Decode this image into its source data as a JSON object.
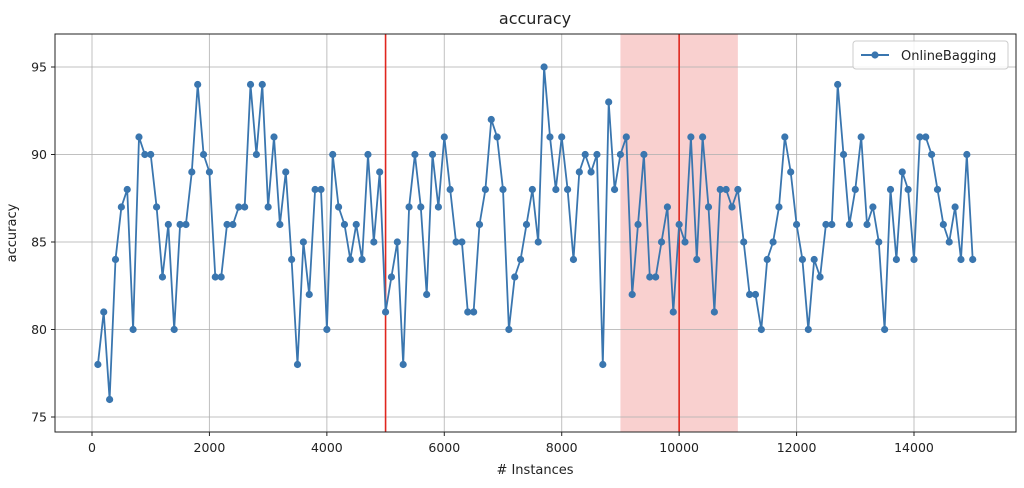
{
  "chart_data": {
    "type": "line",
    "title": "accuracy",
    "xlabel": "# Instances",
    "ylabel": "accuracy",
    "xlim": [
      -700,
      15700
    ],
    "ylim": [
      74.2,
      96.8
    ],
    "xticks": [
      0,
      2000,
      4000,
      6000,
      8000,
      10000,
      12000,
      14000
    ],
    "xtick_labels": [
      "0",
      "2000",
      "4000",
      "6000",
      "8000",
      "10000",
      "12000",
      "14000"
    ],
    "yticks": [
      75,
      80,
      85,
      90,
      95
    ],
    "ytick_labels": [
      "75",
      "80",
      "85",
      "90",
      "95"
    ],
    "grid": true,
    "legend": {
      "position": "upper right",
      "entries": [
        "OnlineBagging"
      ]
    },
    "series": [
      {
        "name": "OnlineBagging",
        "color": "#3a76af",
        "marker": "circle",
        "x": [
          100,
          200,
          300,
          400,
          500,
          600,
          700,
          800,
          900,
          1000,
          1100,
          1200,
          1300,
          1400,
          1500,
          1600,
          1700,
          1800,
          1900,
          2000,
          2100,
          2200,
          2300,
          2400,
          2500,
          2600,
          2700,
          2800,
          2900,
          3000,
          3100,
          3200,
          3300,
          3400,
          3500,
          3600,
          3700,
          3800,
          3900,
          4000,
          4100,
          4200,
          4300,
          4400,
          4500,
          4600,
          4700,
          4800,
          4900,
          5000,
          5100,
          5200,
          5300,
          5400,
          5500,
          5600,
          5700,
          5800,
          5900,
          6000,
          6100,
          6200,
          6300,
          6400,
          6500,
          6600,
          6700,
          6800,
          6900,
          7000,
          7100,
          7200,
          7300,
          7400,
          7500,
          7600,
          7700,
          7800,
          7900,
          8000,
          8100,
          8200,
          8300,
          8400,
          8500,
          8600,
          8700,
          8800,
          8900,
          9000,
          9100,
          9200,
          9300,
          9400,
          9500,
          9600,
          9700,
          9800,
          9900,
          10000,
          10100,
          10200,
          10300,
          10400,
          10500,
          10600,
          10700,
          10800,
          10900,
          11000,
          11100,
          11200,
          11300,
          11400,
          11500,
          11600,
          11700,
          11800,
          11900,
          12000,
          12100,
          12200,
          12300,
          12400,
          12500,
          12600,
          12700,
          12800,
          12900,
          13000,
          13100,
          13200,
          13300,
          13400,
          13500,
          13600,
          13700,
          13800,
          13900,
          14000,
          14100,
          14200,
          14300,
          14400,
          14500,
          14600,
          14700,
          14800,
          14900,
          15000
        ],
        "values": [
          78,
          81,
          76,
          84,
          87,
          88,
          80,
          91,
          90,
          90,
          87,
          83,
          86,
          80,
          86,
          86,
          89,
          94,
          90,
          89,
          83,
          83,
          86,
          86,
          87,
          87,
          94,
          90,
          94,
          87,
          91,
          86,
          89,
          84,
          78,
          85,
          82,
          88,
          88,
          80,
          90,
          87,
          86,
          84,
          86,
          84,
          90,
          85,
          89,
          81,
          83,
          85,
          78,
          87,
          90,
          87,
          82,
          90,
          87,
          91,
          88,
          85,
          85,
          81,
          81,
          86,
          88,
          92,
          91,
          88,
          80,
          83,
          84,
          86,
          88,
          85,
          95,
          91,
          88,
          91,
          88,
          84,
          89,
          90,
          89,
          90,
          78,
          93,
          88,
          90,
          91,
          82,
          86,
          90,
          83,
          83,
          85,
          87,
          81,
          86,
          85,
          91,
          84,
          91,
          87,
          81,
          88,
          88,
          87,
          88,
          85,
          82,
          82,
          80,
          84,
          85,
          87,
          91,
          89,
          86,
          84,
          80,
          84,
          83,
          86,
          86,
          94,
          90,
          86,
          88,
          91,
          86,
          87,
          85,
          80,
          88,
          84,
          89,
          88,
          84,
          91,
          91,
          90,
          88,
          86,
          85,
          87,
          84,
          90,
          84
        ]
      }
    ],
    "annotations": [
      {
        "type": "vline",
        "x": 5000,
        "color": "#e0261e"
      },
      {
        "type": "vline",
        "x": 10000,
        "color": "#e0261e"
      },
      {
        "type": "vspan",
        "x0": 9000,
        "x1": 11000,
        "color": "#f4a9a8",
        "alpha": 0.55
      }
    ]
  }
}
